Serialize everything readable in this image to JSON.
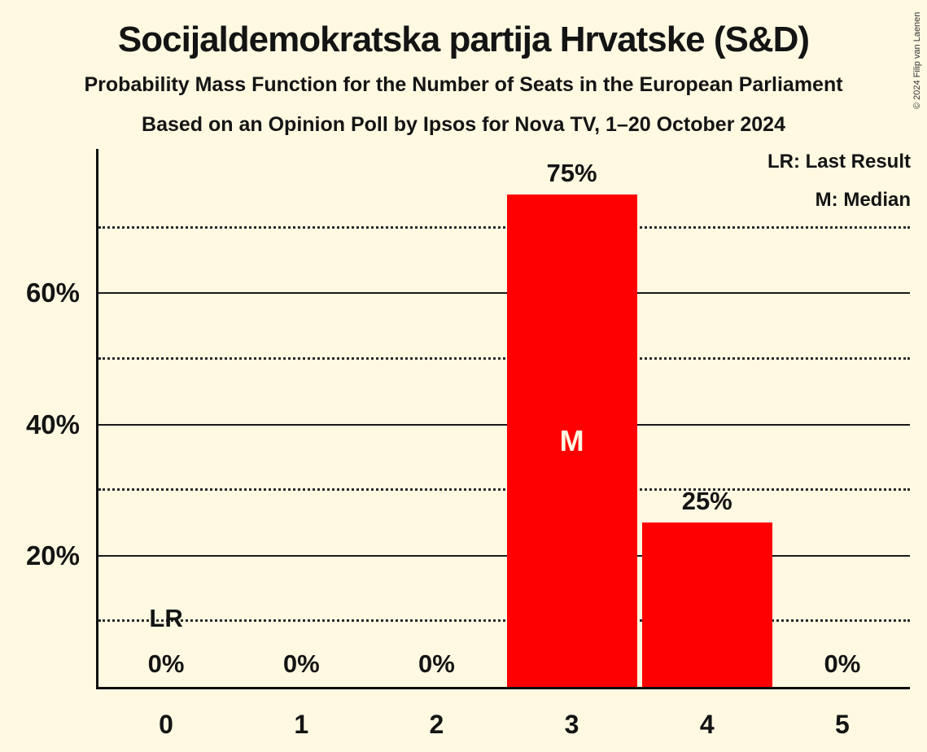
{
  "header": {
    "title": "Socijaldemokratska partija Hrvatske (S&D)",
    "subtitle_line1": "Probability Mass Function for the Number of Seats in the European Parliament",
    "subtitle_line2": "Based on an Opinion Poll by Ipsos for Nova TV, 1–20 October 2024",
    "copyright": "© 2024 Filip van Laenen"
  },
  "legend": {
    "last_result": "LR: Last Result",
    "median": "M: Median"
  },
  "colors": {
    "background": "#FFF9E2",
    "bar": "#FF0000",
    "text": "#141414",
    "inside_bar_label": "#FFF9E2",
    "axis": "#0d0d0d"
  },
  "chart_data": {
    "type": "bar",
    "title": "Probability Mass Function for the Number of Seats in the European Parliament",
    "xlabel": "",
    "ylabel": "",
    "categories": [
      "0",
      "1",
      "2",
      "3",
      "4",
      "5"
    ],
    "values": [
      0,
      0,
      0,
      75,
      25,
      0
    ],
    "bar_labels": [
      "0%",
      "0%",
      "0%",
      "75%",
      "25%",
      "0%"
    ],
    "median_category": "3",
    "median_marker_text": "M",
    "last_result_category": "0",
    "last_result_marker_text": "LR",
    "y_axis": {
      "ylim": [
        0,
        82
      ],
      "ticks": [
        {
          "value": 20,
          "label": "20%"
        },
        {
          "value": 40,
          "label": "40%"
        },
        {
          "value": 60,
          "label": "60%"
        }
      ],
      "solid_gridlines": [
        20,
        40,
        60
      ],
      "dotted_gridlines": [
        10,
        30,
        50,
        70
      ]
    },
    "grid": "horizontal",
    "legend_position": "top-right"
  }
}
